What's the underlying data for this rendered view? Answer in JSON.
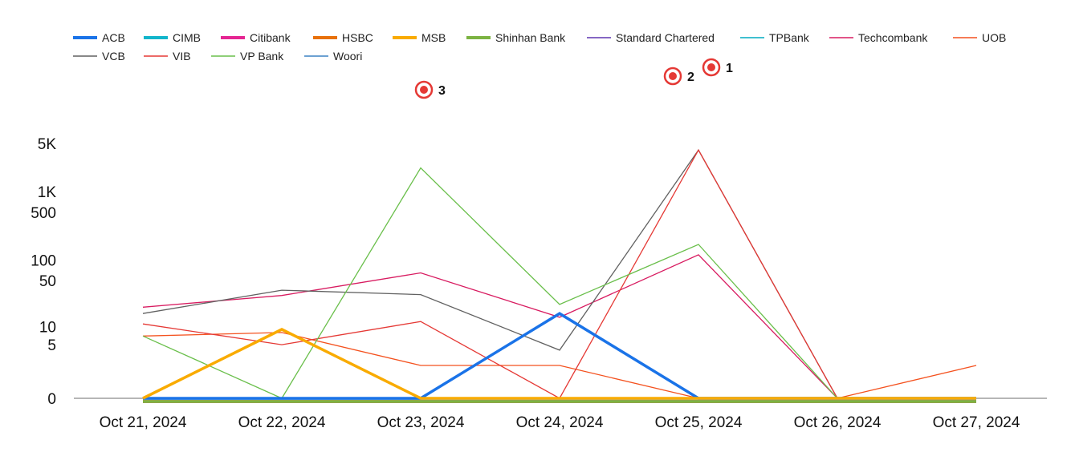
{
  "chart_data": {
    "type": "line",
    "title": "",
    "xlabel": "",
    "ylabel": "",
    "y_scale": "symlog",
    "grid": false,
    "legend_position": "top-left",
    "categories": [
      "Oct 21, 2024",
      "Oct 22, 2024",
      "Oct 23, 2024",
      "Oct 24, 2024",
      "Oct 25, 2024",
      "Oct 26, 2024",
      "Oct 27, 2024"
    ],
    "y_ticks": [
      {
        "value": 0,
        "label": "0"
      },
      {
        "value": 5,
        "label": "5"
      },
      {
        "value": 10,
        "label": "10"
      },
      {
        "value": 50,
        "label": "50"
      },
      {
        "value": 100,
        "label": "100"
      },
      {
        "value": 500,
        "label": "500"
      },
      {
        "value": 1000,
        "label": "1K"
      },
      {
        "value": 5000,
        "label": "5K"
      }
    ],
    "series": [
      {
        "name": "ACB",
        "color": "#1a73e8",
        "thick": true,
        "values": [
          0,
          0,
          0,
          16,
          0,
          0,
          0
        ]
      },
      {
        "name": "CIMB",
        "color": "#12b5cb",
        "thick": true,
        "values": [
          0,
          0,
          0,
          0,
          0,
          0,
          0
        ]
      },
      {
        "name": "Citibank",
        "color": "#e52592",
        "thick": true,
        "values": [
          0,
          0,
          0,
          0,
          0,
          0,
          0
        ]
      },
      {
        "name": "HSBC",
        "color": "#e8710a",
        "thick": true,
        "values": [
          0,
          0,
          0,
          0,
          0,
          0,
          0
        ]
      },
      {
        "name": "MSB",
        "color": "#f9ab00",
        "thick": true,
        "values": [
          0,
          9,
          0,
          0,
          0,
          0,
          0
        ]
      },
      {
        "name": "Shinhan Bank",
        "color": "#7cb342",
        "thick": true,
        "values": [
          0,
          0,
          0,
          0,
          0,
          0,
          0
        ]
      },
      {
        "name": "Standard Chartered",
        "color": "#5e35b1",
        "thick": false,
        "values": [
          0,
          0,
          0,
          0,
          0,
          0,
          0
        ]
      },
      {
        "name": "TPBank",
        "color": "#00acc1",
        "thick": false,
        "values": [
          0,
          0,
          0,
          0,
          0,
          0,
          0
        ]
      },
      {
        "name": "Techcombank",
        "color": "#d81b60",
        "thick": false,
        "values": [
          20,
          30,
          65,
          14,
          120,
          0,
          0
        ]
      },
      {
        "name": "UOB",
        "color": "#f4511e",
        "thick": false,
        "values": [
          7,
          8,
          2,
          2,
          0,
          0,
          2
        ]
      },
      {
        "name": "VCB",
        "color": "#616161",
        "thick": false,
        "values": [
          16,
          36,
          31,
          4,
          4000,
          0,
          0
        ]
      },
      {
        "name": "VIB",
        "color": "#e53935",
        "thick": false,
        "values": [
          11,
          5,
          12,
          0,
          4000,
          0,
          0
        ]
      },
      {
        "name": "VP Bank",
        "color": "#6abf4b",
        "thick": false,
        "values": [
          7,
          0,
          2200,
          22,
          170,
          0,
          0
        ]
      },
      {
        "name": "Woori",
        "color": "#3b82c4",
        "thick": false,
        "values": [
          0,
          0,
          0,
          0,
          0,
          0,
          0
        ]
      }
    ],
    "annotations": [
      {
        "label": "1",
        "category_index": 4,
        "value": 5000
      },
      {
        "label": "2",
        "category_index": 4,
        "value": 4000
      },
      {
        "label": "3",
        "category_index": 2,
        "value": 2700
      }
    ]
  }
}
